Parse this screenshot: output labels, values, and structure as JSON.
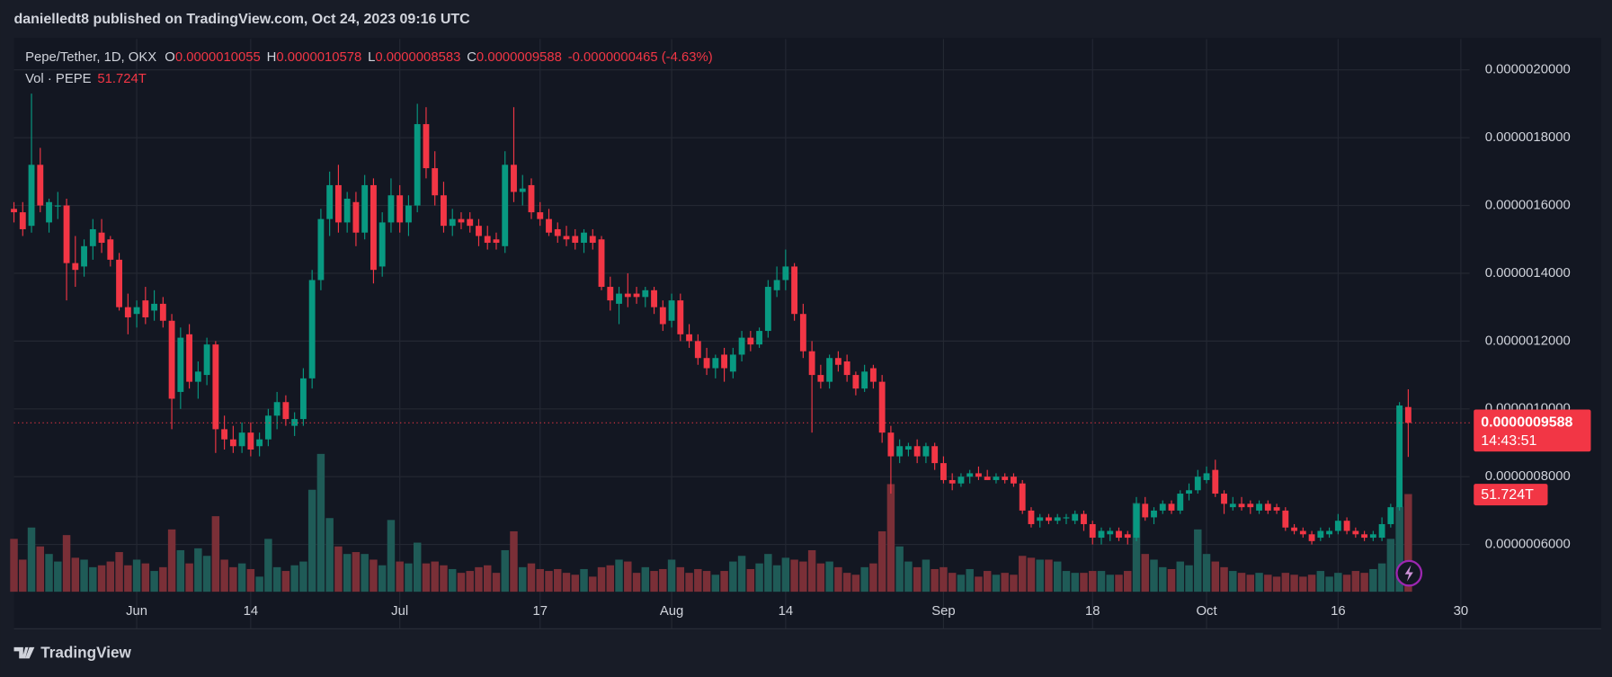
{
  "chart_data": {
    "type": "candlestick",
    "published_by": "danielledt8 published on TradingView.com, Oct 24, 2023 09:16 UTC",
    "symbol": "Pepe/Tether, 1D, OKX",
    "fields": [
      {
        "key": "O",
        "value": "0.0000010055"
      },
      {
        "key": "H",
        "value": "0.0000010578"
      },
      {
        "key": "L",
        "value": "0.0000008583"
      },
      {
        "key": "C",
        "value": "0.0000009588"
      }
    ],
    "change": "-0.0000000465 (-4.63%)",
    "volume_title": "Vol · PEPE",
    "volume_last_label": "51.724T",
    "countdown": "14:43:51",
    "brand": "TradingView",
    "up_color": "#089981",
    "down_color": "#f23645",
    "up_volume_color": "#1f5b57",
    "down_volume_color": "#7a2f37",
    "grid": true,
    "xlim": [
      0,
      166
    ],
    "xticks": [
      {
        "value": 14,
        "label": "Jun"
      },
      {
        "value": 27,
        "label": "14"
      },
      {
        "value": 44,
        "label": "Jul"
      },
      {
        "value": 60,
        "label": "17"
      },
      {
        "value": 75,
        "label": "Aug"
      },
      {
        "value": 88,
        "label": "14"
      },
      {
        "value": 106,
        "label": "Sep"
      },
      {
        "value": 123,
        "label": "18"
      },
      {
        "value": 136,
        "label": "Oct"
      },
      {
        "value": 151,
        "label": "16"
      },
      {
        "value": 165,
        "label": "30"
      }
    ],
    "ylim": [
      3.515e-07,
      2.091e-06
    ],
    "yticks": [
      {
        "value": 6e-07,
        "label": "0.0000006000"
      },
      {
        "value": 8e-07,
        "label": "0.0000008000"
      },
      {
        "value": 1e-06,
        "label": "0.0000010000"
      },
      {
        "value": 1.2e-06,
        "label": "0.0000012000"
      },
      {
        "value": 1.4e-06,
        "label": "0.0000014000"
      },
      {
        "value": 1.6e-06,
        "label": "0.0000016000"
      },
      {
        "value": 1.8e-06,
        "label": "0.0000018000"
      },
      {
        "value": 2e-06,
        "label": "0.0000020000"
      }
    ],
    "volume_lim": [
      0,
      200
    ],
    "open": [
      1.59e-06,
      1.58e-06,
      1.54e-06,
      1.72e-06,
      1.55e-06,
      1.6e-06,
      1.6e-06,
      1.43e-06,
      1.42e-06,
      1.48e-06,
      1.52e-06,
      1.5e-06,
      1.44e-06,
      1.3e-06,
      1.28e-06,
      1.32e-06,
      1.29e-06,
      1.31e-06,
      1.26e-06,
      1.05e-06,
      1.22e-06,
      1.08e-06,
      1.1e-06,
      1.19e-06,
      9.4e-07,
      9.1e-07,
      8.9e-07,
      9.3e-07,
      8.9e-07,
      9.1e-07,
      9.8e-07,
      1.02e-06,
      9.5e-07,
      9.7e-07,
      1.09e-06,
      1.38e-06,
      1.56e-06,
      1.66e-06,
      1.55e-06,
      1.61e-06,
      1.52e-06,
      1.66e-06,
      1.42e-06,
      1.55e-06,
      1.63e-06,
      1.55e-06,
      1.6e-06,
      1.84e-06,
      1.71e-06,
      1.63e-06,
      1.54e-06,
      1.56e-06,
      1.56e-06,
      1.54e-06,
      1.51e-06,
      1.5e-06,
      1.48e-06,
      1.72e-06,
      1.64e-06,
      1.66e-06,
      1.58e-06,
      1.56e-06,
      1.53e-06,
      1.51e-06,
      1.51e-06,
      1.49e-06,
      1.51e-06,
      1.5e-06,
      1.36e-06,
      1.31e-06,
      1.34e-06,
      1.34e-06,
      1.33e-06,
      1.35e-06,
      1.3e-06,
      1.26e-06,
      1.32e-06,
      1.22e-06,
      1.2e-06,
      1.15e-06,
      1.12e-06,
      1.16e-06,
      1.11e-06,
      1.16e-06,
      1.21e-06,
      1.19e-06,
      1.23e-06,
      1.35e-06,
      1.38e-06,
      1.42e-06,
      1.28e-06,
      1.17e-06,
      1.1e-06,
      1.08e-06,
      1.15e-06,
      1.14e-06,
      1.1e-06,
      1.06e-06,
      1.12e-06,
      1.08e-06,
      9.3e-07,
      8.6e-07,
      8.8e-07,
      8.9e-07,
      8.6e-07,
      8.9e-07,
      8.4e-07,
      7.9e-07,
      7.8e-07,
      8e-07,
      8.1e-07,
      8e-07,
      7.9e-07,
      8e-07,
      8e-07,
      7.8e-07,
      7e-07,
      6.7e-07,
      6.8e-07,
      6.7e-07,
      6.8e-07,
      6.7e-07,
      6.9e-07,
      6.6e-07,
      6.2e-07,
      6.3e-07,
      6.4e-07,
      6.3e-07,
      6.2e-07,
      7.2e-07,
      6.8e-07,
      7e-07,
      7.2e-07,
      7e-07,
      7.5e-07,
      7.6e-07,
      7.9e-07,
      8.2e-07,
      7.5e-07,
      7.1e-07,
      7.2e-07,
      7.2e-07,
      7e-07,
      7.2e-07,
      7.1e-07,
      7e-07,
      6.5e-07,
      6.4e-07,
      6.3e-07,
      6.2e-07,
      6.3e-07,
      6.4e-07,
      6.7e-07,
      6.4e-07,
      6.3e-07,
      6.2e-07,
      6.2e-07,
      6.6e-07,
      7.1e-07,
      1.0055e-06
    ],
    "high": [
      1.61e-06,
      1.61e-06,
      1.93e-06,
      1.77e-06,
      1.62e-06,
      1.64e-06,
      1.62e-06,
      1.51e-06,
      1.5e-06,
      1.56e-06,
      1.56e-06,
      1.51e-06,
      1.46e-06,
      1.34e-06,
      1.32e-06,
      1.36e-06,
      1.35e-06,
      1.33e-06,
      1.28e-06,
      1.24e-06,
      1.25e-06,
      1.14e-06,
      1.21e-06,
      1.2e-06,
      9.8e-07,
      9.5e-07,
      9.6e-07,
      9.6e-07,
      9.3e-07,
      1e-06,
      1.05e-06,
      1.04e-06,
      9.9e-07,
      1.12e-06,
      1.41e-06,
      1.59e-06,
      1.7e-06,
      1.72e-06,
      1.64e-06,
      1.64e-06,
      1.69e-06,
      1.68e-06,
      1.58e-06,
      1.68e-06,
      1.66e-06,
      1.63e-06,
      1.9e-06,
      1.89e-06,
      1.76e-06,
      1.67e-06,
      1.59e-06,
      1.58e-06,
      1.58e-06,
      1.56e-06,
      1.54e-06,
      1.52e-06,
      1.76e-06,
      1.89e-06,
      1.69e-06,
      1.68e-06,
      1.61e-06,
      1.59e-06,
      1.55e-06,
      1.54e-06,
      1.53e-06,
      1.53e-06,
      1.53e-06,
      1.51e-06,
      1.39e-06,
      1.36e-06,
      1.4e-06,
      1.36e-06,
      1.36e-06,
      1.36e-06,
      1.32e-06,
      1.34e-06,
      1.34e-06,
      1.25e-06,
      1.22e-06,
      1.18e-06,
      1.16e-06,
      1.18e-06,
      1.18e-06,
      1.23e-06,
      1.23e-06,
      1.24e-06,
      1.38e-06,
      1.42e-06,
      1.47e-06,
      1.43e-06,
      1.31e-06,
      1.2e-06,
      1.13e-06,
      1.16e-06,
      1.17e-06,
      1.16e-06,
      1.11e-06,
      1.13e-06,
      1.13e-06,
      1.1e-06,
      9.5e-07,
      9.1e-07,
      9e-07,
      9.1e-07,
      9e-07,
      9e-07,
      8.6e-07,
      8.1e-07,
      8.1e-07,
      8.2e-07,
      8.3e-07,
      8.2e-07,
      8.1e-07,
      8.1e-07,
      8.1e-07,
      7.9e-07,
      7.1e-07,
      6.9e-07,
      6.9e-07,
      6.9e-07,
      6.9e-07,
      7e-07,
      7e-07,
      6.7e-07,
      6.5e-07,
      6.5e-07,
      6.5e-07,
      6.4e-07,
      7.4e-07,
      7.4e-07,
      7.1e-07,
      7.3e-07,
      7.3e-07,
      7.6e-07,
      7.8e-07,
      8.2e-07,
      8.3e-07,
      8.5e-07,
      7.6e-07,
      7.4e-07,
      7.4e-07,
      7.3e-07,
      7.3e-07,
      7.3e-07,
      7.2e-07,
      7.1e-07,
      6.6e-07,
      6.5e-07,
      6.4e-07,
      6.5e-07,
      6.5e-07,
      6.9e-07,
      6.8e-07,
      6.5e-07,
      6.4e-07,
      6.4e-07,
      6.8e-07,
      7.2e-07,
      1.02e-06,
      1.0578e-06
    ],
    "low": [
      1.55e-06,
      1.51e-06,
      1.52e-06,
      1.58e-06,
      1.52e-06,
      1.56e-06,
      1.32e-06,
      1.36e-06,
      1.39e-06,
      1.44e-06,
      1.46e-06,
      1.42e-06,
      1.29e-06,
      1.22e-06,
      1.24e-06,
      1.25e-06,
      1.26e-06,
      1.24e-06,
      9.4e-07,
      1e-06,
      1.06e-06,
      1.03e-06,
      1.07e-06,
      8.7e-07,
      8.8e-07,
      8.7e-07,
      8.7e-07,
      8.6e-07,
      8.6e-07,
      8.9e-07,
      9.4e-07,
      9.5e-07,
      9.2e-07,
      9.5e-07,
      1.06e-06,
      1.35e-06,
      1.51e-06,
      1.52e-06,
      1.52e-06,
      1.48e-06,
      1.5e-06,
      1.37e-06,
      1.39e-06,
      1.52e-06,
      1.52e-06,
      1.51e-06,
      1.58e-06,
      1.68e-06,
      1.6e-06,
      1.52e-06,
      1.51e-06,
      1.53e-06,
      1.52e-06,
      1.48e-06,
      1.47e-06,
      1.47e-06,
      1.46e-06,
      1.61e-06,
      1.6e-06,
      1.56e-06,
      1.54e-06,
      1.51e-06,
      1.49e-06,
      1.48e-06,
      1.47e-06,
      1.46e-06,
      1.47e-06,
      1.35e-06,
      1.29e-06,
      1.25e-06,
      1.3e-06,
      1.31e-06,
      1.3e-06,
      1.28e-06,
      1.23e-06,
      1.24e-06,
      1.2e-06,
      1.18e-06,
      1.13e-06,
      1.1e-06,
      1.09e-06,
      1.08e-06,
      1.09e-06,
      1.14e-06,
      1.17e-06,
      1.18e-06,
      1.21e-06,
      1.33e-06,
      1.35e-06,
      1.26e-06,
      1.15e-06,
      9.3e-07,
      1.06e-06,
      1.06e-06,
      1.11e-06,
      1.08e-06,
      1.04e-06,
      1.05e-06,
      1.06e-06,
      9e-07,
      7.5e-07,
      8.4e-07,
      8.6e-07,
      8.4e-07,
      8.4e-07,
      8.2e-07,
      7.8e-07,
      7.6e-07,
      7.7e-07,
      7.8e-07,
      7.9e-07,
      7.9e-07,
      7.8e-07,
      7.8e-07,
      7.7e-07,
      6.9e-07,
      6.5e-07,
      6.5e-07,
      6.6e-07,
      6.6e-07,
      6.6e-07,
      6.6e-07,
      6.4e-07,
      6e-07,
      6e-07,
      6.1e-07,
      6.1e-07,
      6e-07,
      6.1e-07,
      6.7e-07,
      6.6e-07,
      6.9e-07,
      6.9e-07,
      6.9e-07,
      7.3e-07,
      7.5e-07,
      7.8e-07,
      7.4e-07,
      6.9e-07,
      7e-07,
      7e-07,
      6.9e-07,
      6.9e-07,
      6.9e-07,
      6.9e-07,
      6.4e-07,
      6.3e-07,
      6.2e-07,
      6e-07,
      6.1e-07,
      6.2e-07,
      6.3e-07,
      6.3e-07,
      6.2e-07,
      6.1e-07,
      6.1e-07,
      6.1e-07,
      6.5e-07,
      7e-07,
      8.583e-07
    ],
    "close": [
      1.58e-06,
      1.53e-06,
      1.72e-06,
      1.6e-06,
      1.61e-06,
      1.6e-06,
      1.43e-06,
      1.41e-06,
      1.48e-06,
      1.53e-06,
      1.49e-06,
      1.44e-06,
      1.3e-06,
      1.27e-06,
      1.3e-06,
      1.27e-06,
      1.31e-06,
      1.26e-06,
      1.03e-06,
      1.21e-06,
      1.08e-06,
      1.11e-06,
      1.19e-06,
      9.4e-07,
      9.1e-07,
      8.9e-07,
      9.3e-07,
      8.8e-07,
      9.1e-07,
      9.8e-07,
      1.02e-06,
      9.7e-07,
      9.7e-07,
      1.09e-06,
      1.38e-06,
      1.56e-06,
      1.66e-06,
      1.55e-06,
      1.62e-06,
      1.52e-06,
      1.66e-06,
      1.41e-06,
      1.55e-06,
      1.63e-06,
      1.55e-06,
      1.6e-06,
      1.84e-06,
      1.71e-06,
      1.63e-06,
      1.54e-06,
      1.56e-06,
      1.55e-06,
      1.54e-06,
      1.51e-06,
      1.49e-06,
      1.49e-06,
      1.72e-06,
      1.64e-06,
      1.65e-06,
      1.58e-06,
      1.56e-06,
      1.52e-06,
      1.51e-06,
      1.5e-06,
      1.49e-06,
      1.52e-06,
      1.49e-06,
      1.36e-06,
      1.32e-06,
      1.34e-06,
      1.33e-06,
      1.33e-06,
      1.35e-06,
      1.3e-06,
      1.25e-06,
      1.32e-06,
      1.22e-06,
      1.2e-06,
      1.15e-06,
      1.12e-06,
      1.15e-06,
      1.12e-06,
      1.16e-06,
      1.21e-06,
      1.19e-06,
      1.23e-06,
      1.36e-06,
      1.38e-06,
      1.42e-06,
      1.28e-06,
      1.17e-06,
      1.1e-06,
      1.08e-06,
      1.15e-06,
      1.13e-06,
      1.1e-06,
      1.06e-06,
      1.11e-06,
      1.08e-06,
      9.3e-07,
      8.6e-07,
      8.9e-07,
      8.9e-07,
      8.6e-07,
      8.9e-07,
      8.4e-07,
      7.9e-07,
      7.8e-07,
      8e-07,
      8.1e-07,
      8e-07,
      7.9e-07,
      8e-07,
      7.9e-07,
      7.8e-07,
      7e-07,
      6.6e-07,
      6.8e-07,
      6.7e-07,
      6.8e-07,
      6.8e-07,
      6.9e-07,
      6.6e-07,
      6.2e-07,
      6.4e-07,
      6.4e-07,
      6.2e-07,
      6.2e-07,
      7.2e-07,
      6.8e-07,
      7e-07,
      7.2e-07,
      7e-07,
      7.5e-07,
      7.6e-07,
      8e-07,
      8.1e-07,
      7.5e-07,
      7.2e-07,
      7.2e-07,
      7.1e-07,
      7.1e-07,
      7.2e-07,
      7e-07,
      7e-07,
      6.5e-07,
      6.4e-07,
      6.3e-07,
      6.1e-07,
      6.4e-07,
      6.4e-07,
      6.7e-07,
      6.4e-07,
      6.3e-07,
      6.2e-07,
      6.3e-07,
      6.6e-07,
      7.1e-07,
      1.01e-06,
      9.588e-07
    ],
    "volume": [
      28,
      17,
      34,
      24,
      20,
      16,
      30,
      18,
      17,
      13,
      14,
      16,
      21,
      14,
      17,
      15,
      11,
      13,
      33,
      22,
      15,
      23,
      19,
      40,
      17,
      13,
      15,
      12,
      8,
      28,
      13,
      11,
      14,
      16,
      54,
      73,
      39,
      24,
      20,
      21,
      20,
      17,
      14,
      38,
      16,
      15,
      26,
      15,
      16,
      14,
      12,
      10,
      11,
      13,
      14,
      10,
      22,
      32,
      13,
      15,
      12,
      11,
      12,
      10,
      9,
      12,
      8,
      13,
      14,
      17,
      16,
      10,
      13,
      11,
      12,
      17,
      13,
      10,
      12,
      11,
      9,
      11,
      16,
      19,
      12,
      15,
      20,
      14,
      18,
      17,
      16,
      22,
      15,
      16,
      13,
      10,
      9,
      13,
      15,
      32,
      57,
      24,
      16,
      13,
      17,
      12,
      13,
      10,
      9,
      12,
      8,
      11,
      9,
      10,
      9,
      19,
      18,
      17,
      17,
      16,
      11,
      10,
      10,
      11,
      11,
      9,
      9,
      11,
      47,
      20,
      17,
      13,
      12,
      16,
      14,
      33,
      20,
      16,
      13,
      11,
      10,
      9,
      10,
      9,
      8,
      10,
      9,
      8,
      9,
      11,
      8,
      10,
      9,
      11,
      10,
      12,
      15,
      28,
      45,
      51.724
    ]
  }
}
